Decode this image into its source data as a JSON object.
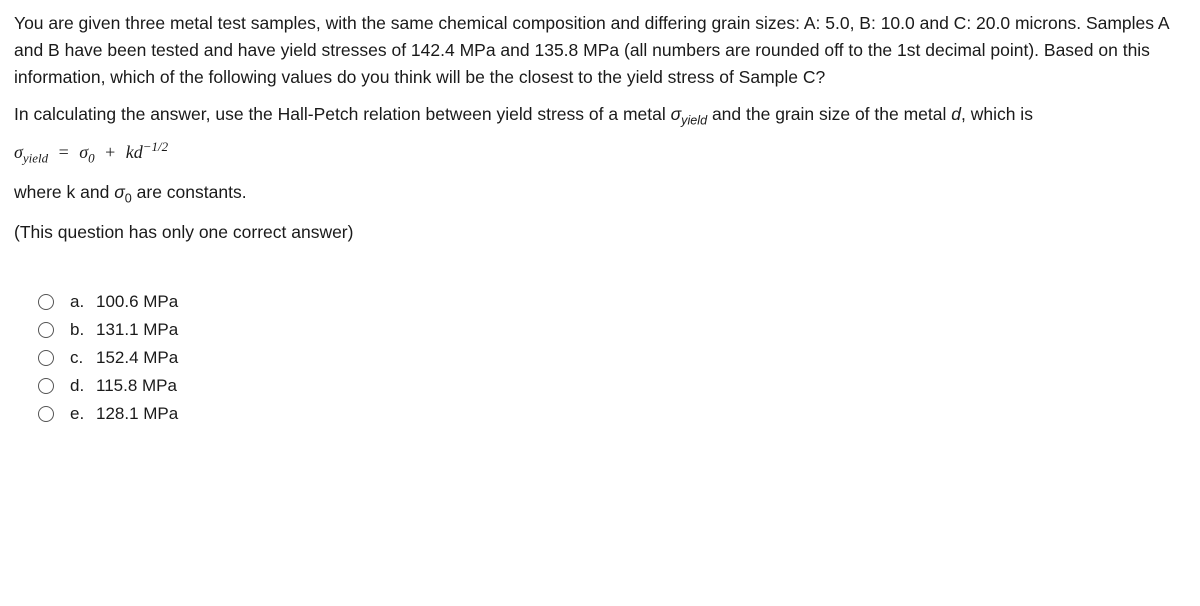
{
  "question": {
    "p1": "You are given three metal test samples, with the same chemical composition and differing grain sizes: A: 5.0, B: 10.0 and C: 20.0 microns. Samples A and B have been tested and have yield stresses of 142.4 MPa and 135.8 MPa (all numbers are rounded off to the 1st decimal point). Based on this information, which of the following values do you think will be the closest to the yield stress of Sample C?",
    "p2_pre": "In calculating the answer, use the Hall-Petch relation between yield stress of a metal ",
    "p2_sig": "σ",
    "p2_sub": "yield",
    "p2_mid": " and the grain size of the metal ",
    "p2_d": "d",
    "p2_post": ", which is",
    "eq_lhs_s": "σ",
    "eq_lhs_sub": "yield",
    "eq_eq": "=",
    "eq_s0": "σ",
    "eq_s0_sub": "0",
    "eq_plus": "+",
    "eq_k": "k",
    "eq_d": "d",
    "eq_exp": "−1/2",
    "p3_pre": "where k and ",
    "p3_s": "σ",
    "p3_sub": "0",
    "p3_post": " are constants.",
    "p4": "(This question has only one correct answer)"
  },
  "options": [
    {
      "letter": "a.",
      "text": "100.6 MPa"
    },
    {
      "letter": "b.",
      "text": "131.1 MPa"
    },
    {
      "letter": "c.",
      "text": "152.4 MPa"
    },
    {
      "letter": "d.",
      "text": "115.8 MPa"
    },
    {
      "letter": "e.",
      "text": "128.1 MPa"
    }
  ]
}
